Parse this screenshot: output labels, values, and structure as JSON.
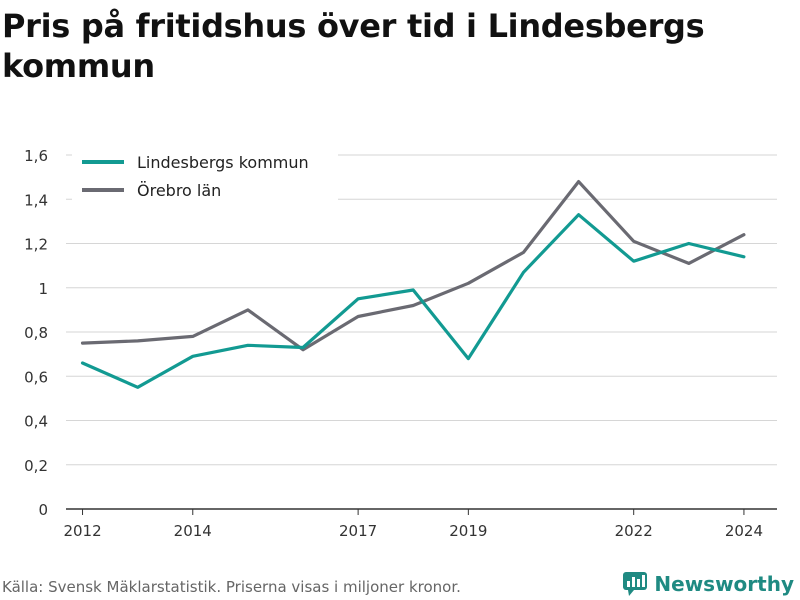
{
  "title": "Pris på fritidshus över tid i Lindesbergs kommun",
  "footer": {
    "source": "Källa: Svensk Mäklarstatistik. Priserna visas i miljoner kronor.",
    "brand": "Newsworthy"
  },
  "colors": {
    "lindesberg": "#129a92",
    "orebro": "#6a6a72",
    "grid": "#d6d6d6",
    "axis": "#333333",
    "brand": "#1f8a82"
  },
  "chart_data": {
    "type": "line",
    "x": [
      2012,
      2013,
      2014,
      2015,
      2016,
      2017,
      2018,
      2019,
      2020,
      2021,
      2022,
      2023,
      2024
    ],
    "xticks": [
      2012,
      2014,
      2017,
      2019,
      2022,
      2024
    ],
    "xlim": [
      2011.7,
      2024.6
    ],
    "ylim": [
      0,
      1.6
    ],
    "yticks": [
      0,
      0.2,
      0.4,
      0.6,
      0.8,
      1,
      1.2,
      1.4,
      1.6
    ],
    "ytick_labels": [
      "0",
      "0,2",
      "0,4",
      "0,6",
      "0,8",
      "1",
      "1,2",
      "1,4",
      "1,6"
    ],
    "grid": true,
    "legend_position": "top-left",
    "series": [
      {
        "name": "Lindesbergs kommun",
        "color": "#129a92",
        "values": [
          0.66,
          0.55,
          0.69,
          0.74,
          0.73,
          0.95,
          0.99,
          0.68,
          1.07,
          1.33,
          1.12,
          1.2,
          1.14
        ]
      },
      {
        "name": "Örebro län",
        "color": "#6a6a72",
        "values": [
          0.75,
          0.76,
          0.78,
          0.9,
          0.72,
          0.87,
          0.92,
          1.02,
          1.16,
          1.48,
          1.21,
          1.11,
          1.24
        ]
      }
    ]
  }
}
